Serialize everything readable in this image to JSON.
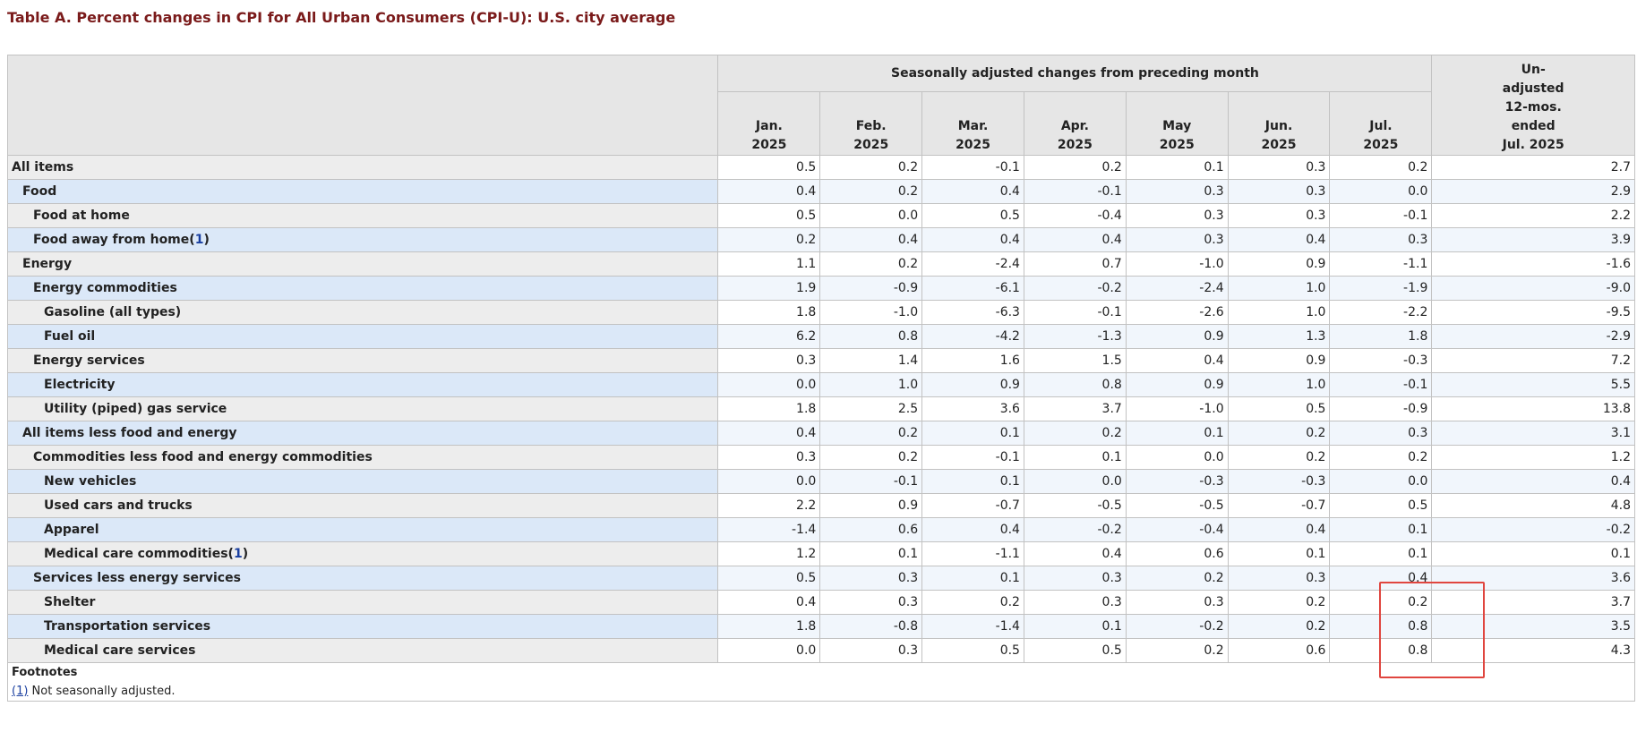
{
  "title": "Table A. Percent changes in CPI for All Urban Consumers (CPI-U): U.S. city average",
  "header": {
    "group_label": "Seasonally adjusted changes from preceding month",
    "months": [
      {
        "month": "Jan.",
        "year": "2025"
      },
      {
        "month": "Feb.",
        "year": "2025"
      },
      {
        "month": "Mar.",
        "year": "2025"
      },
      {
        "month": "Apr.",
        "year": "2025"
      },
      {
        "month": "May",
        "year": "2025"
      },
      {
        "month": "Jun.",
        "year": "2025"
      },
      {
        "month": "Jul.",
        "year": "2025"
      }
    ],
    "unadjusted_lines": [
      "Un-",
      "adjusted",
      "12-mos.",
      "ended",
      "Jul. 2025"
    ]
  },
  "rows": [
    {
      "label": "All items",
      "level": 0,
      "values": [
        "0.5",
        "0.2",
        "-0.1",
        "0.2",
        "0.1",
        "0.3",
        "0.2",
        "2.7"
      ]
    },
    {
      "label": "Food",
      "level": 1,
      "values": [
        "0.4",
        "0.2",
        "0.4",
        "-0.1",
        "0.3",
        "0.3",
        "0.0",
        "2.9"
      ]
    },
    {
      "label": "Food at home",
      "level": 2,
      "values": [
        "0.5",
        "0.0",
        "0.5",
        "-0.4",
        "0.3",
        "0.3",
        "-0.1",
        "2.2"
      ]
    },
    {
      "label": "Food away from home",
      "level": 2,
      "footnote": "1",
      "values": [
        "0.2",
        "0.4",
        "0.4",
        "0.4",
        "0.3",
        "0.4",
        "0.3",
        "3.9"
      ]
    },
    {
      "label": "Energy",
      "level": 1,
      "values": [
        "1.1",
        "0.2",
        "-2.4",
        "0.7",
        "-1.0",
        "0.9",
        "-1.1",
        "-1.6"
      ]
    },
    {
      "label": "Energy commodities",
      "level": 2,
      "values": [
        "1.9",
        "-0.9",
        "-6.1",
        "-0.2",
        "-2.4",
        "1.0",
        "-1.9",
        "-9.0"
      ]
    },
    {
      "label": "Gasoline (all types)",
      "level": 3,
      "values": [
        "1.8",
        "-1.0",
        "-6.3",
        "-0.1",
        "-2.6",
        "1.0",
        "-2.2",
        "-9.5"
      ]
    },
    {
      "label": "Fuel oil",
      "level": 3,
      "values": [
        "6.2",
        "0.8",
        "-4.2",
        "-1.3",
        "0.9",
        "1.3",
        "1.8",
        "-2.9"
      ]
    },
    {
      "label": "Energy services",
      "level": 2,
      "values": [
        "0.3",
        "1.4",
        "1.6",
        "1.5",
        "0.4",
        "0.9",
        "-0.3",
        "7.2"
      ]
    },
    {
      "label": "Electricity",
      "level": 3,
      "values": [
        "0.0",
        "1.0",
        "0.9",
        "0.8",
        "0.9",
        "1.0",
        "-0.1",
        "5.5"
      ]
    },
    {
      "label": "Utility (piped) gas service",
      "level": 3,
      "values": [
        "1.8",
        "2.5",
        "3.6",
        "3.7",
        "-1.0",
        "0.5",
        "-0.9",
        "13.8"
      ]
    },
    {
      "label": "All items less food and energy",
      "level": 1,
      "values": [
        "0.4",
        "0.2",
        "0.1",
        "0.2",
        "0.1",
        "0.2",
        "0.3",
        "3.1"
      ]
    },
    {
      "label": "Commodities less food and energy commodities",
      "level": 2,
      "values": [
        "0.3",
        "0.2",
        "-0.1",
        "0.1",
        "0.0",
        "0.2",
        "0.2",
        "1.2"
      ]
    },
    {
      "label": "New vehicles",
      "level": 3,
      "values": [
        "0.0",
        "-0.1",
        "0.1",
        "0.0",
        "-0.3",
        "-0.3",
        "0.0",
        "0.4"
      ]
    },
    {
      "label": "Used cars and trucks",
      "level": 3,
      "values": [
        "2.2",
        "0.9",
        "-0.7",
        "-0.5",
        "-0.5",
        "-0.7",
        "0.5",
        "4.8"
      ]
    },
    {
      "label": "Apparel",
      "level": 3,
      "values": [
        "-1.4",
        "0.6",
        "0.4",
        "-0.2",
        "-0.4",
        "0.4",
        "0.1",
        "-0.2"
      ]
    },
    {
      "label": "Medical care commodities",
      "level": 3,
      "footnote": "1",
      "values": [
        "1.2",
        "0.1",
        "-1.1",
        "0.4",
        "0.6",
        "0.1",
        "0.1",
        "0.1"
      ]
    },
    {
      "label": "Services less energy services",
      "level": 2,
      "values": [
        "0.5",
        "0.3",
        "0.1",
        "0.3",
        "0.2",
        "0.3",
        "0.4",
        "3.6"
      ]
    },
    {
      "label": "Shelter",
      "level": 3,
      "values": [
        "0.4",
        "0.3",
        "0.2",
        "0.3",
        "0.3",
        "0.2",
        "0.2",
        "3.7"
      ]
    },
    {
      "label": "Transportation services",
      "level": 3,
      "values": [
        "1.8",
        "-0.8",
        "-1.4",
        "0.1",
        "-0.2",
        "0.2",
        "0.8",
        "3.5"
      ]
    },
    {
      "label": "Medical care services",
      "level": 3,
      "values": [
        "0.0",
        "0.3",
        "0.5",
        "0.5",
        "0.2",
        "0.6",
        "0.8",
        "4.3"
      ]
    }
  ],
  "footnotes": {
    "title": "Footnotes",
    "items": [
      {
        "ref": "(1)",
        "text": " Not seasonally adjusted."
      }
    ]
  },
  "colors": {
    "title": "#7a1a1a",
    "header_bg": "#e6e6e6",
    "row_label_odd": "#ededed",
    "row_label_even": "#dbe8f8",
    "highlight_border": "#e0463f",
    "link": "#1a3fa0"
  }
}
